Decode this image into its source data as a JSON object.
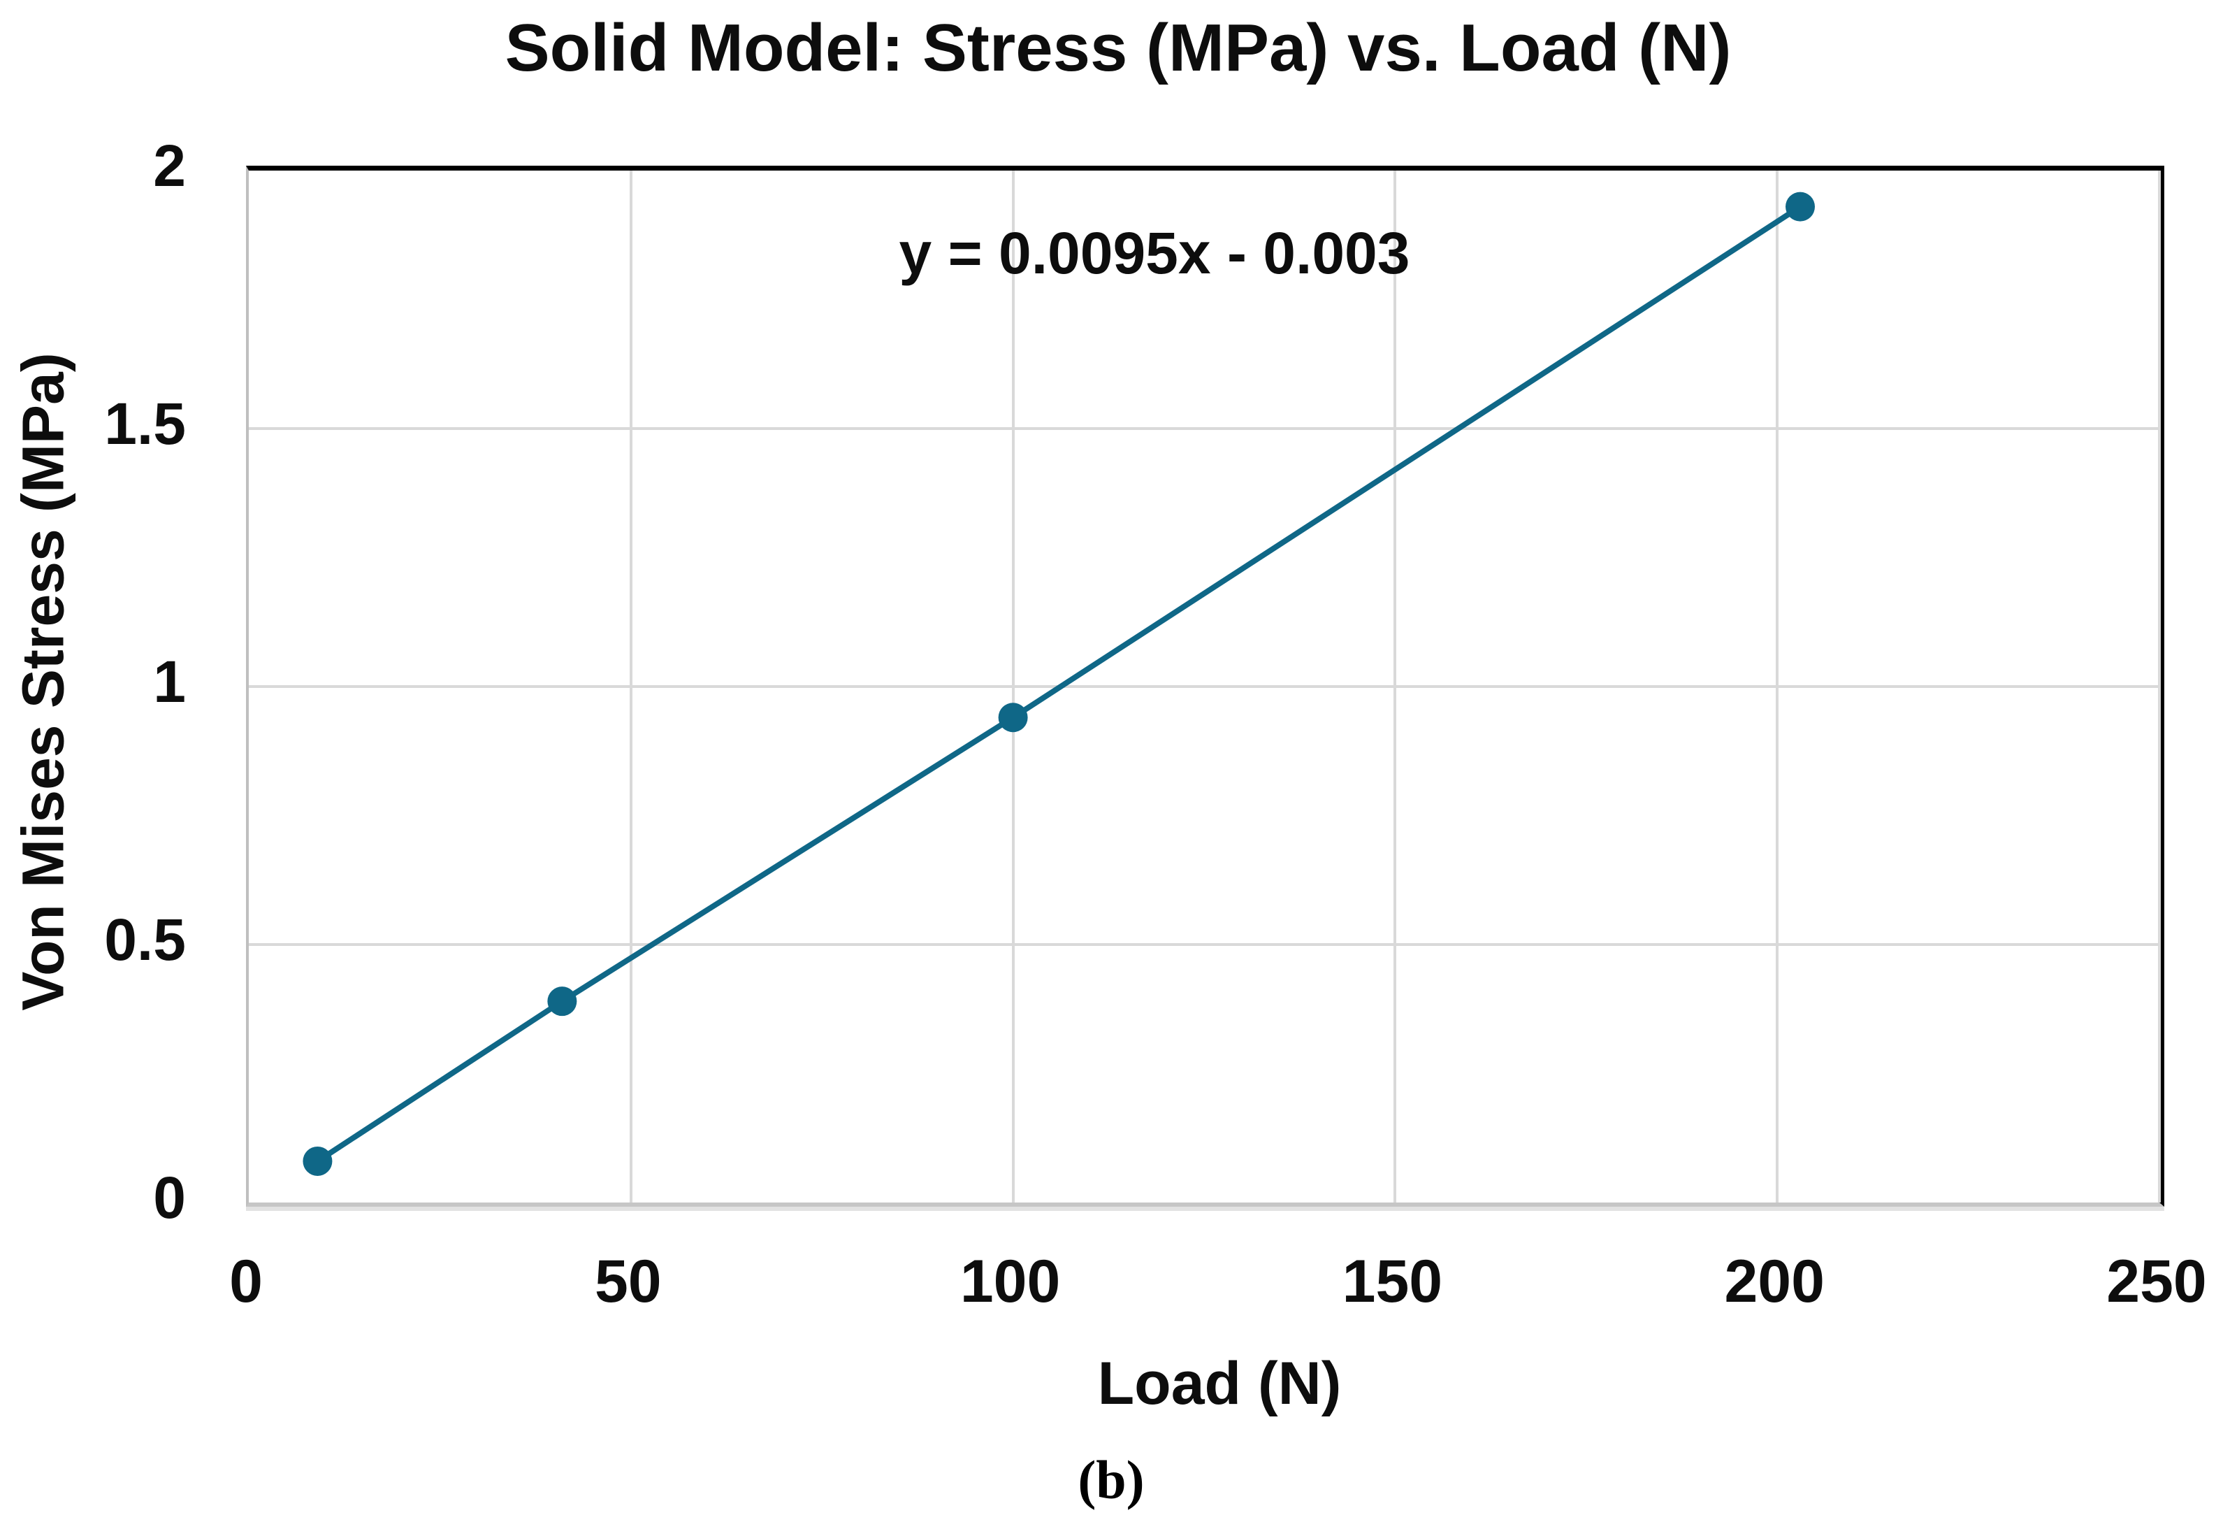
{
  "figure": {
    "title": "Solid Model: Stress (MPa) vs. Load (N)",
    "caption": "(b)"
  },
  "chart_data": {
    "type": "line",
    "title": "Solid Model: Stress (MPa) vs. Load (N)",
    "xlabel": "Load (N)",
    "ylabel": "Von Mises Stress (MPa)",
    "annotation_equation": "y = 0.0095x - 0.003",
    "series": [
      {
        "name": "Von Mises Stress",
        "x": [
          9,
          41,
          100,
          203
        ],
        "y": [
          0.08,
          0.39,
          0.94,
          1.93
        ]
      }
    ],
    "xlim": [
      0,
      250
    ],
    "ylim": [
      0,
      2
    ],
    "x_tick_labels": [
      "0",
      "50",
      "100",
      "150",
      "200",
      "250"
    ],
    "x_tick_values": [
      0,
      50,
      100,
      150,
      200,
      250
    ],
    "y_tick_labels": [
      "0",
      "0.5",
      "1",
      "1.5",
      "2"
    ],
    "y_tick_values": [
      0,
      0.5,
      1,
      1.5,
      2
    ],
    "grid": true,
    "legend_position": "none",
    "marker": "circle",
    "colors": {
      "line": "#0f6787",
      "marker": "#0f6787",
      "gridline": "#d9d9d9",
      "axis_line_left": "#bfbfbf",
      "axis_line_bottom": "#c6c6c6",
      "plot_border_top_right": "#000000",
      "text": "#0d0d0d"
    }
  }
}
